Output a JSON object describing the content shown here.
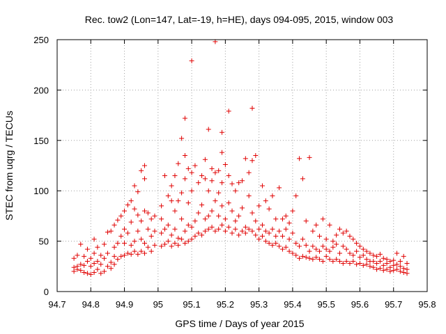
{
  "chart_data": {
    "type": "scatter",
    "title": "Rec. tow2 (Lon=147, Lat=-19, h=HE), days 094-095, 2015, window 003",
    "xlabel": "GPS time / Days of year 2015",
    "ylabel": "STEC from uqrg / TECUs",
    "xlim": [
      94.7,
      95.8
    ],
    "ylim": [
      0,
      250
    ],
    "xticks": [
      "94.7",
      "94.8",
      "94.9",
      "95",
      "95.1",
      "95.2",
      "95.3",
      "95.4",
      "95.5",
      "95.6",
      "95.7",
      "95.8"
    ],
    "yticks": [
      "0",
      "50",
      "100",
      "150",
      "200",
      "250"
    ],
    "grid": true,
    "marker": "plus",
    "color": "#e00000",
    "series": [
      {
        "points": [
          [
            94.75,
            20
          ],
          [
            94.75,
            24
          ],
          [
            94.75,
            33
          ],
          [
            94.76,
            22
          ],
          [
            94.76,
            25
          ],
          [
            94.76,
            36
          ],
          [
            94.77,
            21
          ],
          [
            94.77,
            27
          ],
          [
            94.77,
            47
          ],
          [
            94.78,
            19
          ],
          [
            94.78,
            26
          ],
          [
            94.78,
            35
          ],
          [
            94.79,
            18
          ],
          [
            94.79,
            30
          ],
          [
            94.79,
            42
          ],
          [
            94.8,
            17
          ],
          [
            94.8,
            25
          ],
          [
            94.8,
            33
          ],
          [
            94.81,
            19
          ],
          [
            94.81,
            28
          ],
          [
            94.81,
            38
          ],
          [
            94.81,
            52
          ],
          [
            94.82,
            22
          ],
          [
            94.82,
            30
          ],
          [
            94.82,
            44
          ],
          [
            94.83,
            18
          ],
          [
            94.83,
            27
          ],
          [
            94.83,
            36
          ],
          [
            94.84,
            20
          ],
          [
            94.84,
            33
          ],
          [
            94.84,
            47
          ],
          [
            94.85,
            25
          ],
          [
            94.85,
            38
          ],
          [
            94.85,
            59
          ],
          [
            94.86,
            23
          ],
          [
            94.86,
            29
          ],
          [
            94.86,
            60
          ],
          [
            94.87,
            27
          ],
          [
            94.87,
            35
          ],
          [
            94.87,
            44
          ],
          [
            94.87,
            66
          ],
          [
            94.88,
            32
          ],
          [
            94.88,
            48
          ],
          [
            94.88,
            71
          ],
          [
            94.89,
            35
          ],
          [
            94.89,
            55
          ],
          [
            94.89,
            75
          ],
          [
            94.9,
            36
          ],
          [
            94.9,
            48
          ],
          [
            94.9,
            62
          ],
          [
            94.9,
            80
          ],
          [
            94.91,
            38
          ],
          [
            94.91,
            58
          ],
          [
            94.91,
            86
          ],
          [
            94.92,
            37
          ],
          [
            94.92,
            46
          ],
          [
            94.92,
            69
          ],
          [
            94.92,
            90
          ],
          [
            94.93,
            40
          ],
          [
            94.93,
            50
          ],
          [
            94.93,
            82
          ],
          [
            94.93,
            105
          ],
          [
            94.94,
            37
          ],
          [
            94.94,
            60
          ],
          [
            94.94,
            76
          ],
          [
            94.94,
            99
          ],
          [
            94.95,
            40
          ],
          [
            94.95,
            52
          ],
          [
            94.95,
            70
          ],
          [
            94.95,
            120
          ],
          [
            94.96,
            38
          ],
          [
            94.96,
            48
          ],
          [
            94.96,
            80
          ],
          [
            94.96,
            125
          ],
          [
            94.96,
            112
          ],
          [
            94.97,
            44
          ],
          [
            94.97,
            62
          ],
          [
            94.97,
            78
          ],
          [
            94.98,
            40
          ],
          [
            94.98,
            55
          ],
          [
            94.98,
            72
          ],
          [
            94.99,
            46
          ],
          [
            94.99,
            60
          ],
          [
            94.99,
            75
          ],
          [
            95.01,
            45
          ],
          [
            95.01,
            58
          ],
          [
            95.01,
            72
          ],
          [
            95.01,
            85
          ],
          [
            95.02,
            47
          ],
          [
            95.02,
            62
          ],
          [
            95.02,
            115
          ],
          [
            95.03,
            50
          ],
          [
            95.03,
            66
          ],
          [
            95.03,
            95
          ],
          [
            95.04,
            45
          ],
          [
            95.04,
            56
          ],
          [
            95.04,
            90
          ],
          [
            95.04,
            105
          ],
          [
            95.05,
            48
          ],
          [
            95.05,
            62
          ],
          [
            95.05,
            80
          ],
          [
            95.05,
            115
          ],
          [
            95.06,
            46
          ],
          [
            95.06,
            53
          ],
          [
            95.06,
            90
          ],
          [
            95.06,
            127
          ],
          [
            95.07,
            52
          ],
          [
            95.07,
            72
          ],
          [
            95.07,
            98
          ],
          [
            95.07,
            152
          ],
          [
            95.08,
            48
          ],
          [
            95.08,
            60
          ],
          [
            95.08,
            112
          ],
          [
            95.08,
            135
          ],
          [
            95.08,
            172
          ],
          [
            95.09,
            50
          ],
          [
            95.09,
            66
          ],
          [
            95.09,
            88
          ],
          [
            95.09,
            122
          ],
          [
            95.1,
            52
          ],
          [
            95.1,
            64
          ],
          [
            95.1,
            100
          ],
          [
            95.1,
            118
          ],
          [
            95.1,
            229
          ],
          [
            95.11,
            55
          ],
          [
            95.11,
            70
          ],
          [
            95.11,
            125
          ],
          [
            95.12,
            58
          ],
          [
            95.12,
            78
          ],
          [
            95.12,
            108
          ],
          [
            95.13,
            56
          ],
          [
            95.13,
            86
          ],
          [
            95.13,
            115
          ],
          [
            95.14,
            60
          ],
          [
            95.14,
            72
          ],
          [
            95.14,
            112
          ],
          [
            95.14,
            131
          ],
          [
            95.15,
            62
          ],
          [
            95.15,
            75
          ],
          [
            95.15,
            100
          ],
          [
            95.15,
            161
          ],
          [
            95.16,
            64
          ],
          [
            95.16,
            80
          ],
          [
            95.16,
            110
          ],
          [
            95.16,
            122
          ],
          [
            95.17,
            60
          ],
          [
            95.17,
            90
          ],
          [
            95.17,
            118
          ],
          [
            95.17,
            248
          ],
          [
            95.18,
            62
          ],
          [
            95.18,
            75
          ],
          [
            95.18,
            98
          ],
          [
            95.18,
            120
          ],
          [
            95.19,
            66
          ],
          [
            95.19,
            85
          ],
          [
            95.19,
            108
          ],
          [
            95.19,
            138
          ],
          [
            95.19,
            158
          ],
          [
            95.2,
            60
          ],
          [
            95.2,
            72
          ],
          [
            95.2,
            126
          ],
          [
            95.21,
            64
          ],
          [
            95.21,
            88
          ],
          [
            95.21,
            115
          ],
          [
            95.21,
            179
          ],
          [
            95.22,
            58
          ],
          [
            95.22,
            80
          ],
          [
            95.22,
            107
          ],
          [
            95.23,
            62
          ],
          [
            95.23,
            70
          ],
          [
            95.23,
            100
          ],
          [
            95.24,
            56
          ],
          [
            95.24,
            75
          ],
          [
            95.24,
            108
          ],
          [
            95.25,
            60
          ],
          [
            95.25,
            83
          ],
          [
            95.25,
            110
          ],
          [
            95.26,
            58
          ],
          [
            95.26,
            64
          ],
          [
            95.26,
            132
          ],
          [
            95.27,
            62
          ],
          [
            95.27,
            95
          ],
          [
            95.27,
            118
          ],
          [
            95.28,
            60
          ],
          [
            95.28,
            78
          ],
          [
            95.28,
            130
          ],
          [
            95.28,
            182
          ],
          [
            95.29,
            56
          ],
          [
            95.29,
            70
          ],
          [
            95.29,
            135
          ],
          [
            95.3,
            52
          ],
          [
            95.3,
            62
          ],
          [
            95.3,
            85
          ],
          [
            95.31,
            55
          ],
          [
            95.31,
            66
          ],
          [
            95.31,
            105
          ],
          [
            95.32,
            50
          ],
          [
            95.32,
            60
          ],
          [
            95.32,
            90
          ],
          [
            95.33,
            48
          ],
          [
            95.33,
            58
          ],
          [
            95.33,
            82
          ],
          [
            95.34,
            46
          ],
          [
            95.34,
            62
          ],
          [
            95.34,
            95
          ],
          [
            95.35,
            48
          ],
          [
            95.35,
            55
          ],
          [
            95.35,
            72
          ],
          [
            95.36,
            45
          ],
          [
            95.36,
            60
          ],
          [
            95.36,
            103
          ],
          [
            95.37,
            42
          ],
          [
            95.37,
            55
          ],
          [
            95.37,
            72
          ],
          [
            95.38,
            44
          ],
          [
            95.38,
            62
          ],
          [
            95.38,
            75
          ],
          [
            95.39,
            40
          ],
          [
            95.39,
            52
          ],
          [
            95.39,
            68
          ],
          [
            95.4,
            38
          ],
          [
            95.4,
            58
          ],
          [
            95.4,
            80
          ],
          [
            95.41,
            36
          ],
          [
            95.41,
            48
          ],
          [
            95.41,
            95
          ],
          [
            95.42,
            33
          ],
          [
            95.42,
            45
          ],
          [
            95.42,
            132
          ],
          [
            95.43,
            35
          ],
          [
            95.43,
            52
          ],
          [
            95.43,
            112
          ],
          [
            95.44,
            34
          ],
          [
            95.44,
            46
          ],
          [
            95.44,
            70
          ],
          [
            95.45,
            33
          ],
          [
            95.45,
            40
          ],
          [
            95.45,
            133
          ],
          [
            95.46,
            32
          ],
          [
            95.46,
            45
          ],
          [
            95.46,
            60
          ],
          [
            95.47,
            34
          ],
          [
            95.47,
            42
          ],
          [
            95.47,
            66
          ],
          [
            95.48,
            32
          ],
          [
            95.48,
            40
          ],
          [
            95.48,
            55
          ],
          [
            95.49,
            30
          ],
          [
            95.49,
            45
          ],
          [
            95.49,
            72
          ],
          [
            95.5,
            35
          ],
          [
            95.5,
            42
          ],
          [
            95.5,
            52
          ],
          [
            95.51,
            32
          ],
          [
            95.51,
            40
          ],
          [
            95.51,
            66
          ],
          [
            95.52,
            30
          ],
          [
            95.52,
            44
          ],
          [
            95.52,
            50
          ],
          [
            95.53,
            32
          ],
          [
            95.53,
            47
          ],
          [
            95.53,
            56
          ],
          [
            95.54,
            30
          ],
          [
            95.54,
            38
          ],
          [
            95.54,
            62
          ],
          [
            95.55,
            28
          ],
          [
            95.55,
            45
          ],
          [
            95.55,
            58
          ],
          [
            95.56,
            30
          ],
          [
            95.56,
            42
          ],
          [
            95.56,
            60
          ],
          [
            95.57,
            28
          ],
          [
            95.57,
            38
          ],
          [
            95.57,
            55
          ],
          [
            95.58,
            30
          ],
          [
            95.58,
            36
          ],
          [
            95.58,
            52
          ],
          [
            95.59,
            27
          ],
          [
            95.59,
            40
          ],
          [
            95.59,
            48
          ],
          [
            95.6,
            28
          ],
          [
            95.6,
            34
          ],
          [
            95.6,
            45
          ],
          [
            95.61,
            26
          ],
          [
            95.61,
            36
          ],
          [
            95.61,
            42
          ],
          [
            95.62,
            27
          ],
          [
            95.62,
            32
          ],
          [
            95.62,
            40
          ],
          [
            95.63,
            25
          ],
          [
            95.63,
            30
          ],
          [
            95.63,
            38
          ],
          [
            95.64,
            24
          ],
          [
            95.64,
            30
          ],
          [
            95.64,
            36
          ],
          [
            95.65,
            22
          ],
          [
            95.65,
            28
          ],
          [
            95.65,
            35
          ],
          [
            95.66,
            23
          ],
          [
            95.66,
            30
          ],
          [
            95.66,
            37
          ],
          [
            95.67,
            21
          ],
          [
            95.67,
            26
          ],
          [
            95.67,
            33
          ],
          [
            95.68,
            22
          ],
          [
            95.68,
            28
          ],
          [
            95.68,
            32
          ],
          [
            95.69,
            20
          ],
          [
            95.69,
            24
          ],
          [
            95.69,
            30
          ],
          [
            95.7,
            21
          ],
          [
            95.7,
            26
          ],
          [
            95.7,
            31
          ],
          [
            95.71,
            22
          ],
          [
            95.71,
            27
          ],
          [
            95.71,
            38
          ],
          [
            95.72,
            20
          ],
          [
            95.72,
            25
          ],
          [
            95.72,
            30
          ],
          [
            95.73,
            19
          ],
          [
            95.73,
            23
          ],
          [
            95.73,
            35
          ],
          [
            95.74,
            18
          ],
          [
            95.74,
            22
          ],
          [
            95.74,
            28
          ]
        ]
      }
    ]
  }
}
